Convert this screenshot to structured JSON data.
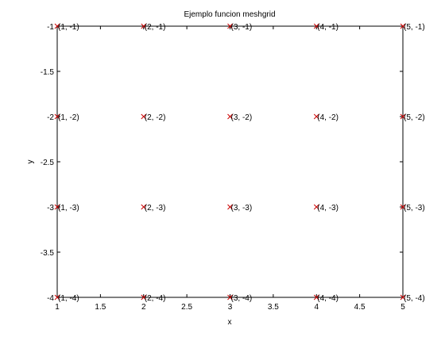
{
  "chart_data": {
    "type": "scatter",
    "title": "Ejemplo funcion meshgrid",
    "xlabel": "x",
    "ylabel": "y",
    "xlim": [
      1,
      5
    ],
    "ylim": [
      -4,
      -1
    ],
    "xticks": [
      "1",
      "1.5",
      "2",
      "2.5",
      "3",
      "3.5",
      "4",
      "4.5",
      "5"
    ],
    "yticks": [
      "-1",
      "-1.5",
      "-2",
      "-2.5",
      "-3",
      "-3.5",
      "-4"
    ],
    "grid": false,
    "legend": "none",
    "marker": "x",
    "marker_color": "#cc0000",
    "points": [
      {
        "x": 1,
        "y": -1,
        "label": "(1, -1)"
      },
      {
        "x": 2,
        "y": -1,
        "label": "(2, -1)"
      },
      {
        "x": 3,
        "y": -1,
        "label": "(3, -1)"
      },
      {
        "x": 4,
        "y": -1,
        "label": "(4, -1)"
      },
      {
        "x": 5,
        "y": -1,
        "label": "(5, -1)"
      },
      {
        "x": 1,
        "y": -2,
        "label": "(1, -2)"
      },
      {
        "x": 2,
        "y": -2,
        "label": "(2, -2)"
      },
      {
        "x": 3,
        "y": -2,
        "label": "(3, -2)"
      },
      {
        "x": 4,
        "y": -2,
        "label": "(4, -2)"
      },
      {
        "x": 5,
        "y": -2,
        "label": "(5, -2)"
      },
      {
        "x": 1,
        "y": -3,
        "label": "(1, -3)"
      },
      {
        "x": 2,
        "y": -3,
        "label": "(2, -3)"
      },
      {
        "x": 3,
        "y": -3,
        "label": "(3, -3)"
      },
      {
        "x": 4,
        "y": -3,
        "label": "(4, -3)"
      },
      {
        "x": 5,
        "y": -3,
        "label": "(5, -3)"
      },
      {
        "x": 1,
        "y": -4,
        "label": "(1, -4)"
      },
      {
        "x": 2,
        "y": -4,
        "label": "(2, -4)"
      },
      {
        "x": 3,
        "y": -4,
        "label": "(3, -4)"
      },
      {
        "x": 4,
        "y": -4,
        "label": "(4, -4)"
      },
      {
        "x": 5,
        "y": -4,
        "label": "(5, -4)"
      }
    ]
  }
}
